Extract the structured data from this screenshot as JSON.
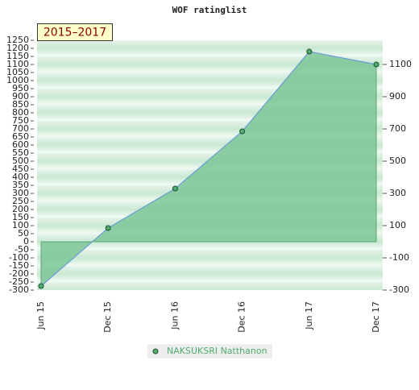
{
  "chart_data": {
    "type": "area",
    "title": "WOF ratinglist",
    "annotation": "2015–2017",
    "categories": [
      "Jun 15",
      "Dec 15",
      "Jun 16",
      "Dec 16",
      "Jun 17",
      "Dec 17"
    ],
    "series": [
      {
        "name": "NAKSUKSRI Natthanon",
        "color": "#7cc596",
        "line_color": "#6a9fd6",
        "marker_color": "#4fae6e",
        "values": [
          -275,
          85,
          330,
          685,
          1180,
          1100
        ]
      }
    ],
    "ylim": [
      -300,
      1250
    ],
    "yticks": [
      -300,
      -250,
      -200,
      -150,
      -100,
      -50,
      0,
      50,
      100,
      150,
      200,
      250,
      300,
      350,
      400,
      450,
      500,
      550,
      600,
      650,
      700,
      750,
      800,
      850,
      900,
      950,
      1000,
      1050,
      1100,
      1150,
      1200,
      1250
    ],
    "y2lim": [
      -300,
      1250
    ],
    "y2ticks": [
      -300,
      -100,
      100,
      300,
      500,
      700,
      900,
      1100
    ],
    "legend": "bottom"
  }
}
